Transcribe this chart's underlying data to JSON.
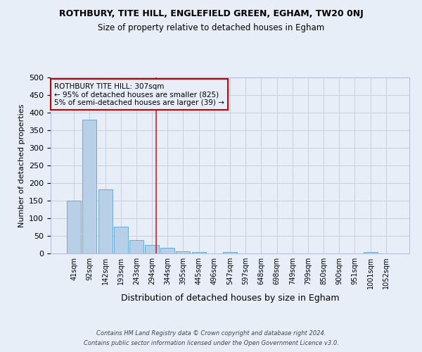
{
  "title": "ROTHBURY, TITE HILL, ENGLEFIELD GREEN, EGHAM, TW20 0NJ",
  "subtitle": "Size of property relative to detached houses in Egham",
  "xlabel": "Distribution of detached houses by size in Egham",
  "ylabel": "Number of detached properties",
  "footnote1": "Contains HM Land Registry data © Crown copyright and database right 2024.",
  "footnote2": "Contains public sector information licensed under the Open Government Licence v3.0.",
  "bar_labels": [
    "41sqm",
    "92sqm",
    "142sqm",
    "193sqm",
    "243sqm",
    "294sqm",
    "344sqm",
    "395sqm",
    "445sqm",
    "496sqm",
    "547sqm",
    "597sqm",
    "648sqm",
    "698sqm",
    "749sqm",
    "799sqm",
    "850sqm",
    "900sqm",
    "951sqm",
    "1001sqm",
    "1052sqm"
  ],
  "bar_values": [
    150,
    380,
    183,
    76,
    38,
    25,
    17,
    7,
    4,
    0,
    4,
    0,
    0,
    0,
    0,
    0,
    0,
    0,
    0,
    4,
    0
  ],
  "bar_color": "#b8cfe8",
  "bar_edge_color": "#6aaad4",
  "background_color": "#e8eef8",
  "grid_color": "#c8d0dc",
  "annotation_text": "ROTHBURY TITE HILL: 307sqm\n← 95% of detached houses are smaller (825)\n5% of semi-detached houses are larger (39) →",
  "annotation_box_edge_color": "#cc0000",
  "red_line_color": "#cc2222",
  "ylim": [
    0,
    500
  ],
  "yticks": [
    0,
    50,
    100,
    150,
    200,
    250,
    300,
    350,
    400,
    450,
    500
  ]
}
